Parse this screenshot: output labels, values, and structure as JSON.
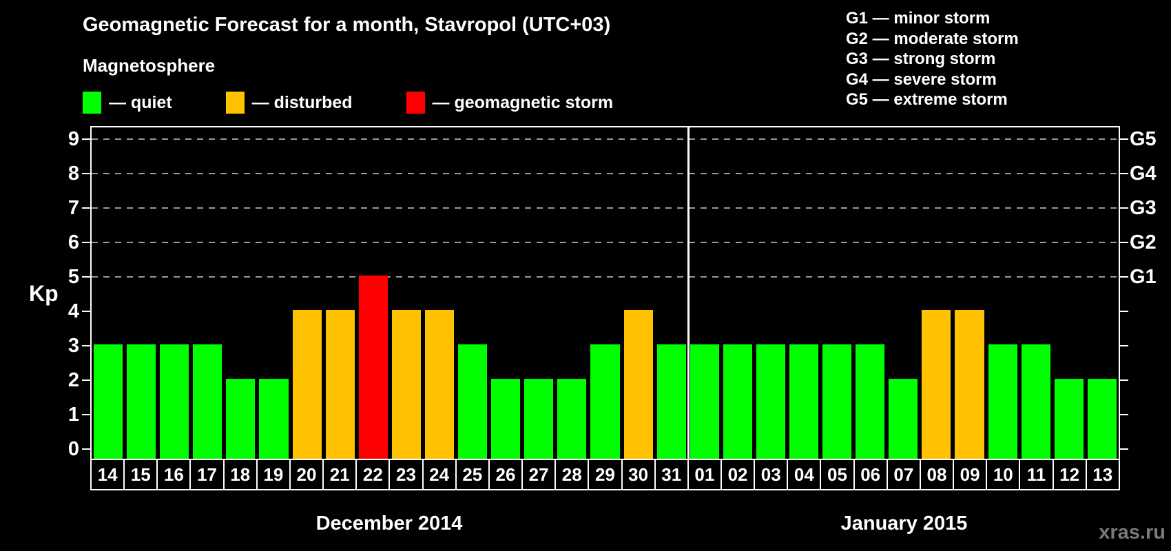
{
  "title": "Geomagnetic Forecast for a month, Stavropol (UTC+03)",
  "subtitle": "Magnetosphere",
  "legend": {
    "items": [
      {
        "key": "quiet",
        "label": "— quiet"
      },
      {
        "key": "disturbed",
        "label": "— disturbed"
      },
      {
        "key": "storm",
        "label": "— geomagnetic storm"
      }
    ]
  },
  "g_scale_legend": [
    "G1 — minor storm",
    "G2 — moderate storm",
    "G3 — strong storm",
    "G4 — severe storm",
    "G5 — extreme storm"
  ],
  "watermark": "xras.ru",
  "colors": {
    "quiet": "#00ff00",
    "disturbed": "#ffc200",
    "storm": "#ff0000",
    "frame": "#ffffff",
    "grid": "#9a9a9a",
    "watermark": "#7a7a7a"
  },
  "chart_data": {
    "type": "bar",
    "title": "Geomagnetic Forecast for a month, Stavropol (UTC+03)",
    "xlabel": "",
    "ylabel": "Kp",
    "ylim": [
      0,
      9
    ],
    "yticks": [
      0,
      1,
      2,
      3,
      4,
      5,
      6,
      7,
      8,
      9
    ],
    "grid_values": [
      5,
      6,
      7,
      8,
      9
    ],
    "grid": "dashed horizontal at Kp 5-9",
    "legend_position": "top-left",
    "right_axis": [
      {
        "label": "G5",
        "value": 9
      },
      {
        "label": "G4",
        "value": 8
      },
      {
        "label": "G3",
        "value": 7
      },
      {
        "label": "G2",
        "value": 6
      },
      {
        "label": "G1",
        "value": 5
      }
    ],
    "months": [
      {
        "label": "December 2014",
        "span": 18
      },
      {
        "label": "January 2015",
        "span": 13
      }
    ],
    "categories": [
      "14",
      "15",
      "16",
      "17",
      "18",
      "19",
      "20",
      "21",
      "22",
      "23",
      "24",
      "25",
      "26",
      "27",
      "28",
      "29",
      "30",
      "31",
      "01",
      "02",
      "03",
      "04",
      "05",
      "06",
      "07",
      "08",
      "09",
      "10",
      "11",
      "12",
      "13"
    ],
    "values": [
      3,
      3,
      3,
      3,
      2,
      2,
      4,
      4,
      5,
      4,
      4,
      3,
      2,
      2,
      2,
      3,
      4,
      3,
      3,
      3,
      3,
      3,
      3,
      3,
      2,
      4,
      4,
      3,
      3,
      2,
      2
    ],
    "statuses": [
      "quiet",
      "quiet",
      "quiet",
      "quiet",
      "quiet",
      "quiet",
      "disturbed",
      "disturbed",
      "storm",
      "disturbed",
      "disturbed",
      "quiet",
      "quiet",
      "quiet",
      "quiet",
      "quiet",
      "disturbed",
      "quiet",
      "quiet",
      "quiet",
      "quiet",
      "quiet",
      "quiet",
      "quiet",
      "quiet",
      "disturbed",
      "disturbed",
      "quiet",
      "quiet",
      "quiet",
      "quiet"
    ]
  }
}
